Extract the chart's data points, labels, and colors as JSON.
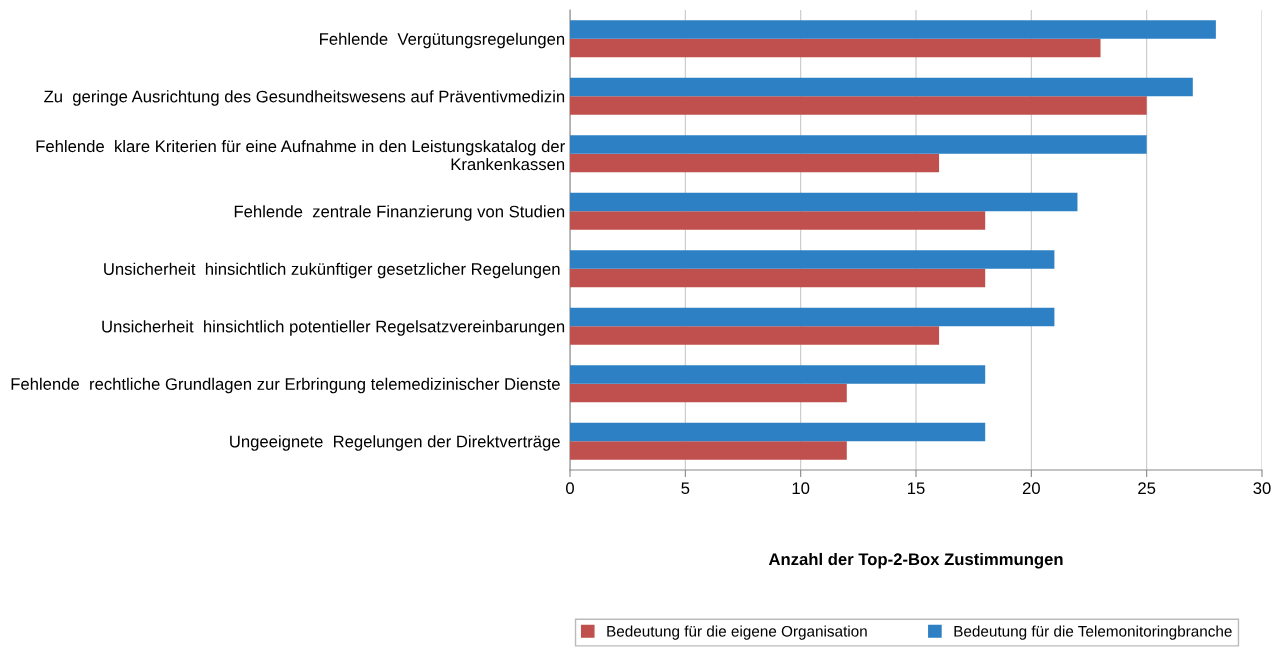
{
  "chart_data": {
    "type": "bar",
    "orientation": "horizontal",
    "categories": [
      "Fehlende  Vergütungsregelungen",
      "Zu  geringe Ausrichtung des Gesundheitswesens auf Präventivmedizin",
      "Fehlende  klare Kriterien für eine Aufnahme in den Leistungskatalog der\nKrankenkassen",
      "Fehlende  zentrale Finanzierung von Studien",
      "Unsicherheit  hinsichtlich zukünftiger gesetzlicher Regelungen ",
      "Unsicherheit  hinsichtlich potentieller Regelsatzvereinbarungen",
      "Fehlende  rechtliche Grundlagen zur Erbringung telemedizinischer Dienste ",
      "Ungeeignete  Regelungen der Direktverträge "
    ],
    "series": [
      {
        "name": "Bedeutung für die eigene Organisation",
        "color": "#c0504d",
        "values": [
          23,
          25,
          16,
          18,
          18,
          16,
          12,
          12
        ]
      },
      {
        "name": "Bedeutung für die Telemonitoringbranche",
        "color": "#2e80c4",
        "values": [
          28,
          27,
          25,
          22,
          21,
          21,
          18,
          18
        ]
      }
    ],
    "xlabel": "Anzahl der Top-2-Box Zustimmungen",
    "xlim": [
      0,
      30
    ],
    "xticks": [
      0,
      5,
      10,
      15,
      20,
      25,
      30
    ],
    "grid": "x",
    "legend": "bottom"
  }
}
